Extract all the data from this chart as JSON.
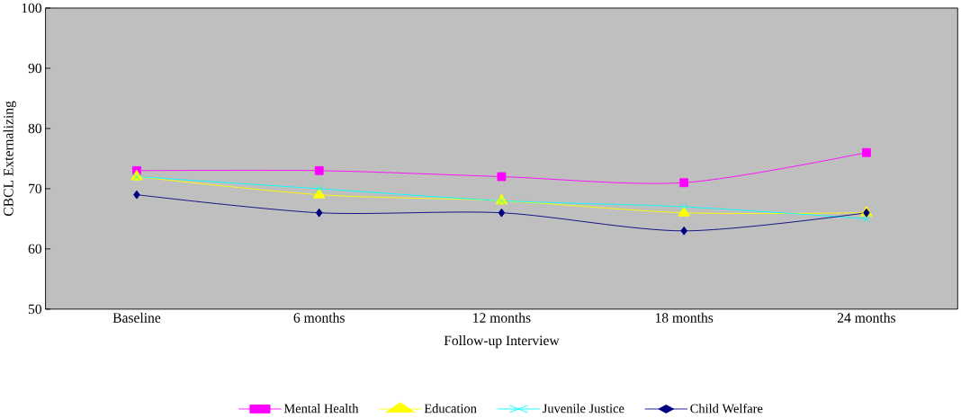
{
  "chart_data": {
    "type": "line",
    "xlabel": "Follow-up Interview",
    "ylabel": "CBCL Externalizing",
    "categories": [
      "Baseline",
      "6 months",
      "12 months",
      "18 months",
      "24 months"
    ],
    "series": [
      {
        "name": "Mental Health",
        "color": "#ff00ff",
        "marker": "square",
        "values": [
          73,
          73,
          72,
          71,
          76
        ]
      },
      {
        "name": "Education",
        "color": "#ffff00",
        "marker": "triangle",
        "values": [
          72,
          69,
          68,
          66,
          66
        ]
      },
      {
        "name": "Juvenile Justice",
        "color": "#00ffff",
        "marker": "cross",
        "values": [
          72,
          70,
          68,
          67,
          65
        ]
      },
      {
        "name": "Child Welfare",
        "color": "#000080",
        "marker": "diamond",
        "values": [
          69,
          66,
          66,
          63,
          66
        ]
      }
    ],
    "ylim": [
      50,
      100
    ],
    "yticks": [
      50,
      60,
      70,
      80,
      90,
      100
    ],
    "grid": false,
    "legend": "bottom",
    "line_style": "solid"
  }
}
